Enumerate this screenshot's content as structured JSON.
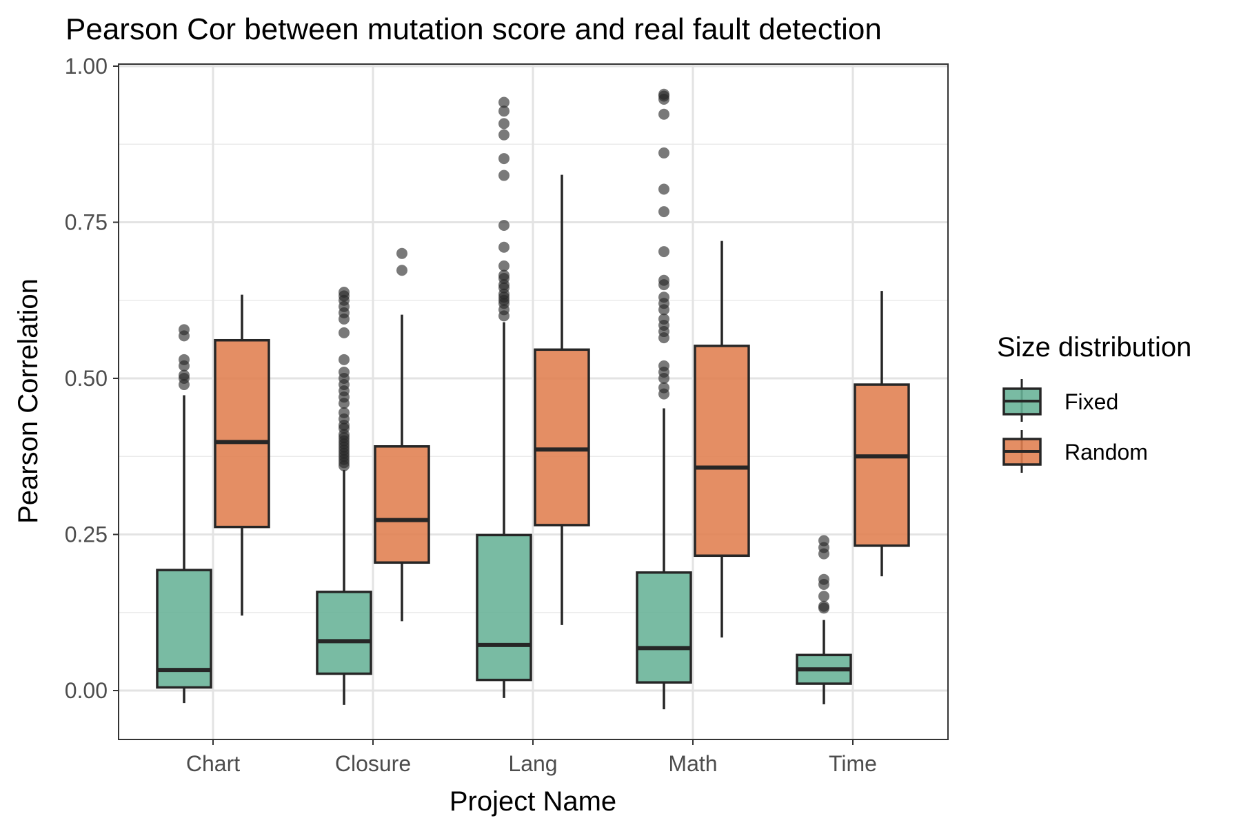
{
  "chart_data": {
    "type": "box",
    "title": "Pearson Cor between mutation score and real fault detection",
    "xlabel": "Project Name",
    "ylabel": "Pearson Correlation",
    "ylim": [
      -0.08,
      1.0
    ],
    "yticks": [
      0.0,
      0.25,
      0.5,
      0.75,
      1.0
    ],
    "ytick_labels": [
      "0.00",
      "0.25",
      "0.50",
      "0.75",
      "1.00"
    ],
    "grid": true,
    "legend": {
      "title": "Size distribution",
      "position": "right",
      "entries": [
        {
          "name": "Fixed",
          "color": "#66b296"
        },
        {
          "name": "Random",
          "color": "#e07e4e"
        }
      ]
    },
    "categories": [
      "Chart",
      "Closure",
      "Lang",
      "Math",
      "Time"
    ],
    "series": [
      {
        "name": "Fixed",
        "color": "#66b296",
        "boxes": [
          {
            "category": "Chart",
            "whisker_low": -0.02,
            "q1": 0.005,
            "median": 0.033,
            "q3": 0.193,
            "whisker_high": 0.473,
            "outliers": [
              0.49,
              0.5,
              0.505,
              0.52,
              0.53,
              0.568,
              0.578
            ]
          },
          {
            "category": "Closure",
            "whisker_low": -0.023,
            "q1": 0.027,
            "median": 0.079,
            "q3": 0.158,
            "whisker_high": 0.353,
            "outliers": [
              0.36,
              0.365,
              0.37,
              0.375,
              0.38,
              0.385,
              0.39,
              0.395,
              0.4,
              0.405,
              0.41,
              0.42,
              0.425,
              0.435,
              0.445,
              0.46,
              0.47,
              0.48,
              0.49,
              0.5,
              0.51,
              0.53,
              0.573,
              0.595,
              0.605,
              0.615,
              0.625,
              0.632,
              0.638
            ]
          },
          {
            "category": "Lang",
            "whisker_low": -0.012,
            "q1": 0.017,
            "median": 0.073,
            "q3": 0.249,
            "whisker_high": 0.59,
            "outliers": [
              0.6,
              0.61,
              0.62,
              0.625,
              0.63,
              0.635,
              0.645,
              0.65,
              0.66,
              0.665,
              0.68,
              0.71,
              0.745,
              0.825,
              0.852,
              0.89,
              0.908,
              0.928,
              0.942
            ]
          },
          {
            "category": "Math",
            "whisker_low": -0.03,
            "q1": 0.013,
            "median": 0.068,
            "q3": 0.189,
            "whisker_high": 0.452,
            "outliers": [
              0.475,
              0.485,
              0.5,
              0.51,
              0.52,
              0.565,
              0.575,
              0.585,
              0.595,
              0.61,
              0.62,
              0.63,
              0.65,
              0.657,
              0.703,
              0.767,
              0.803,
              0.861,
              0.923,
              0.947,
              0.952,
              0.955
            ]
          },
          {
            "category": "Time",
            "whisker_low": -0.022,
            "q1": 0.011,
            "median": 0.034,
            "q3": 0.057,
            "whisker_high": 0.113,
            "outliers": [
              0.132,
              0.135,
              0.151,
              0.17,
              0.178,
              0.219,
              0.229,
              0.24
            ]
          }
        ]
      },
      {
        "name": "Random",
        "color": "#e07e4e",
        "boxes": [
          {
            "category": "Chart",
            "whisker_low": 0.12,
            "q1": 0.262,
            "median": 0.398,
            "q3": 0.561,
            "whisker_high": 0.634,
            "outliers": []
          },
          {
            "category": "Closure",
            "whisker_low": 0.111,
            "q1": 0.205,
            "median": 0.273,
            "q3": 0.391,
            "whisker_high": 0.602,
            "outliers": [
              0.673,
              0.7
            ]
          },
          {
            "category": "Lang",
            "whisker_low": 0.105,
            "q1": 0.265,
            "median": 0.386,
            "q3": 0.546,
            "whisker_high": 0.826,
            "outliers": []
          },
          {
            "category": "Math",
            "whisker_low": 0.085,
            "q1": 0.216,
            "median": 0.357,
            "q3": 0.552,
            "whisker_high": 0.72,
            "outliers": []
          },
          {
            "category": "Time",
            "whisker_low": 0.183,
            "q1": 0.232,
            "median": 0.375,
            "q3": 0.49,
            "whisker_high": 0.64,
            "outliers": []
          }
        ]
      }
    ]
  }
}
